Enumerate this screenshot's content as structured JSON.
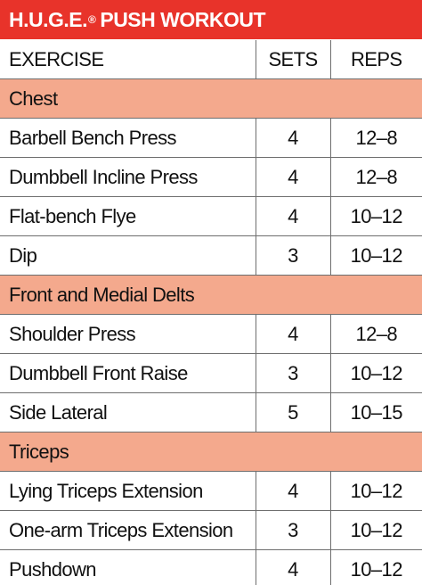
{
  "title": {
    "main": "H.U.G.E.",
    "reg_mark": "®",
    "rest": "PUSH WORKOUT"
  },
  "header": {
    "exercise": "EXERCISE",
    "sets": "SETS",
    "reps": "REPS"
  },
  "sections": [
    {
      "name": "Chest",
      "rows": [
        {
          "exercise": "Barbell Bench Press",
          "sets": "4",
          "reps": "12–8"
        },
        {
          "exercise": "Dumbbell Incline Press",
          "sets": "4",
          "reps": "12–8"
        },
        {
          "exercise": "Flat-bench Flye",
          "sets": "4",
          "reps": "10–12"
        },
        {
          "exercise": "Dip",
          "sets": "3",
          "reps": "10–12"
        }
      ]
    },
    {
      "name": "Front and Medial Delts",
      "rows": [
        {
          "exercise": "Shoulder Press",
          "sets": "4",
          "reps": "12–8"
        },
        {
          "exercise": "Dumbbell Front Raise",
          "sets": "3",
          "reps": "10–12"
        },
        {
          "exercise": "Side Lateral",
          "sets": "5",
          "reps": "10–15"
        }
      ]
    },
    {
      "name": "Triceps",
      "rows": [
        {
          "exercise": "Lying Triceps Extension",
          "sets": "4",
          "reps": "10–12"
        },
        {
          "exercise": "One-arm Triceps Extension",
          "sets": "3",
          "reps": "10–12"
        },
        {
          "exercise": "Pushdown",
          "sets": "4",
          "reps": "10–12"
        }
      ]
    }
  ],
  "colors": {
    "title_bar": "#e8332a",
    "section_band": "#f4a98d",
    "grid_line": "#6e6e6e"
  }
}
